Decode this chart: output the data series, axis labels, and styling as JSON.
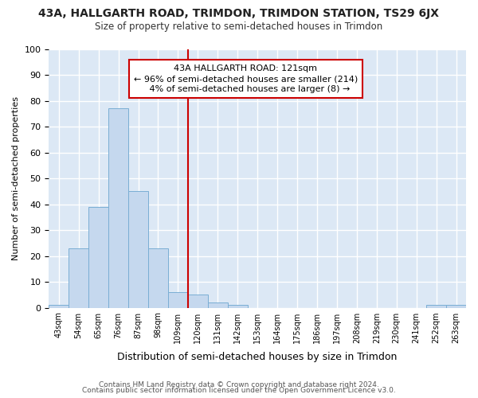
{
  "title": "43A, HALLGARTH ROAD, TRIMDON, TRIMDON STATION, TS29 6JX",
  "subtitle": "Size of property relative to semi-detached houses in Trimdon",
  "xlabel": "Distribution of semi-detached houses by size in Trimdon",
  "ylabel": "Number of semi-detached properties",
  "footer_line1": "Contains HM Land Registry data © Crown copyright and database right 2024.",
  "footer_line2": "Contains public sector information licensed under the Open Government Licence v3.0.",
  "bar_color": "#c5d8ee",
  "bar_edge_color": "#7aaed4",
  "background_color": "#dce8f5",
  "grid_color": "#ffffff",
  "vline_x": 120,
  "vline_color": "#cc0000",
  "annotation_line1": "43A HALLGARTH ROAD: 121sqm",
  "annotation_line2": "← 96% of semi-detached houses are smaller (214)",
  "annotation_line3": "   4% of semi-detached houses are larger (8) →",
  "annotation_box_color": "#cc0000",
  "categories": [
    "43sqm",
    "54sqm",
    "65sqm",
    "76sqm",
    "87sqm",
    "98sqm",
    "109sqm",
    "120sqm",
    "131sqm",
    "142sqm",
    "153sqm",
    "164sqm",
    "175sqm",
    "186sqm",
    "197sqm",
    "208sqm",
    "219sqm",
    "230sqm",
    "241sqm",
    "252sqm",
    "263sqm"
  ],
  "bin_edges": [
    43,
    54,
    65,
    76,
    87,
    98,
    109,
    120,
    131,
    142,
    153,
    164,
    175,
    186,
    197,
    208,
    219,
    230,
    241,
    252,
    263,
    274
  ],
  "values": [
    1,
    23,
    39,
    77,
    45,
    23,
    6,
    5,
    2,
    1,
    0,
    0,
    0,
    0,
    0,
    0,
    0,
    0,
    0,
    1,
    1
  ],
  "ylim": [
    0,
    100
  ],
  "yticks": [
    0,
    10,
    20,
    30,
    40,
    50,
    60,
    70,
    80,
    90,
    100
  ]
}
